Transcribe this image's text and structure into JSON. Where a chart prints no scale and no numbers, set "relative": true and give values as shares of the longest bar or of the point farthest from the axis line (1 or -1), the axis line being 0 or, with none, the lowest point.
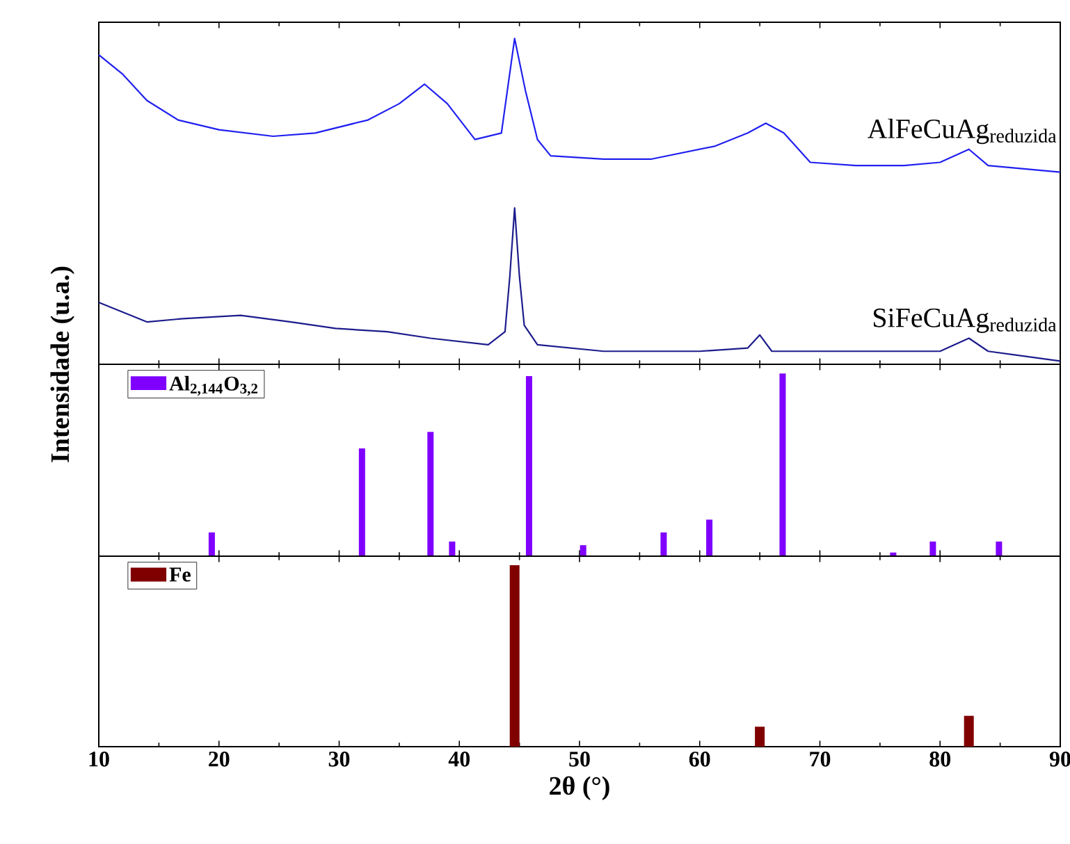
{
  "chart_data": [
    {
      "type": "line",
      "relative": true,
      "xlim": [
        10,
        90
      ],
      "xticks": [
        10,
        20,
        30,
        40,
        50,
        60,
        70,
        80,
        90
      ],
      "tick_labels": false,
      "series": [
        {
          "name": "AlFeCuAg$_{reduzida}$",
          "color": "#2020f0",
          "x": [
            10,
            12,
            14,
            16.6,
            20,
            24.5,
            28,
            32.4,
            35,
            37.1,
            39,
            41.3,
            43.5,
            44.6,
            45.5,
            46.5,
            47.6,
            52,
            56,
            61.3,
            64,
            65.5,
            67,
            69.2,
            73,
            77,
            80,
            82.4,
            84,
            87,
            90
          ],
          "values": [
            0.95,
            0.89,
            0.81,
            0.75,
            0.72,
            0.7,
            0.71,
            0.75,
            0.8,
            0.86,
            0.8,
            0.69,
            0.71,
            1.0,
            0.84,
            0.69,
            0.64,
            0.63,
            0.63,
            0.67,
            0.71,
            0.74,
            0.71,
            0.62,
            0.61,
            0.61,
            0.62,
            0.66,
            0.61,
            0.6,
            0.59
          ]
        },
        {
          "name": "SiFeCuAg$_{reduzida}$",
          "color": "#1c1c8c",
          "x": [
            10,
            14,
            17,
            21.8,
            26,
            29.7,
            34,
            37.6,
            42.4,
            43.8,
            44.2,
            44.6,
            45.0,
            45.4,
            46.5,
            52,
            60,
            64,
            65.0,
            66,
            72,
            80,
            82.4,
            84,
            90
          ],
          "values": [
            0.19,
            0.13,
            0.14,
            0.15,
            0.13,
            0.11,
            0.1,
            0.08,
            0.06,
            0.1,
            0.27,
            0.48,
            0.27,
            0.12,
            0.06,
            0.04,
            0.04,
            0.05,
            0.09,
            0.04,
            0.04,
            0.04,
            0.08,
            0.04,
            0.01
          ]
        }
      ]
    },
    {
      "type": "bar",
      "relative": true,
      "ylabel": "Intensidade (u.a.)",
      "xlim": [
        10,
        90
      ],
      "xticks": [
        10,
        20,
        30,
        40,
        50,
        60,
        70,
        80,
        90
      ],
      "tick_labels": false,
      "legend": "top left",
      "series": [
        {
          "name": "Al$_{2,144}$O$_{3,2}$",
          "color": "#7f00ff",
          "x": [
            19.4,
            31.9,
            37.6,
            39.4,
            45.8,
            50.3,
            57.0,
            60.8,
            66.9,
            76.1,
            79.4,
            84.9
          ],
          "values": [
            0.13,
            0.59,
            0.68,
            0.08,
            0.985,
            0.06,
            0.13,
            0.2,
            1.0,
            0.02,
            0.08,
            0.08
          ]
        }
      ]
    },
    {
      "type": "bar",
      "relative": true,
      "xlabel": "2θ (°)",
      "xlim": [
        10,
        90
      ],
      "xticks": [
        10,
        20,
        30,
        40,
        50,
        60,
        70,
        80,
        90
      ],
      "tick_labels": "x",
      "legend": "top left",
      "series": [
        {
          "name": "Fe",
          "color": "#800000",
          "x": [
            44.6,
            65.0,
            82.4
          ],
          "values": [
            1.0,
            0.11,
            0.17
          ]
        }
      ]
    }
  ]
}
